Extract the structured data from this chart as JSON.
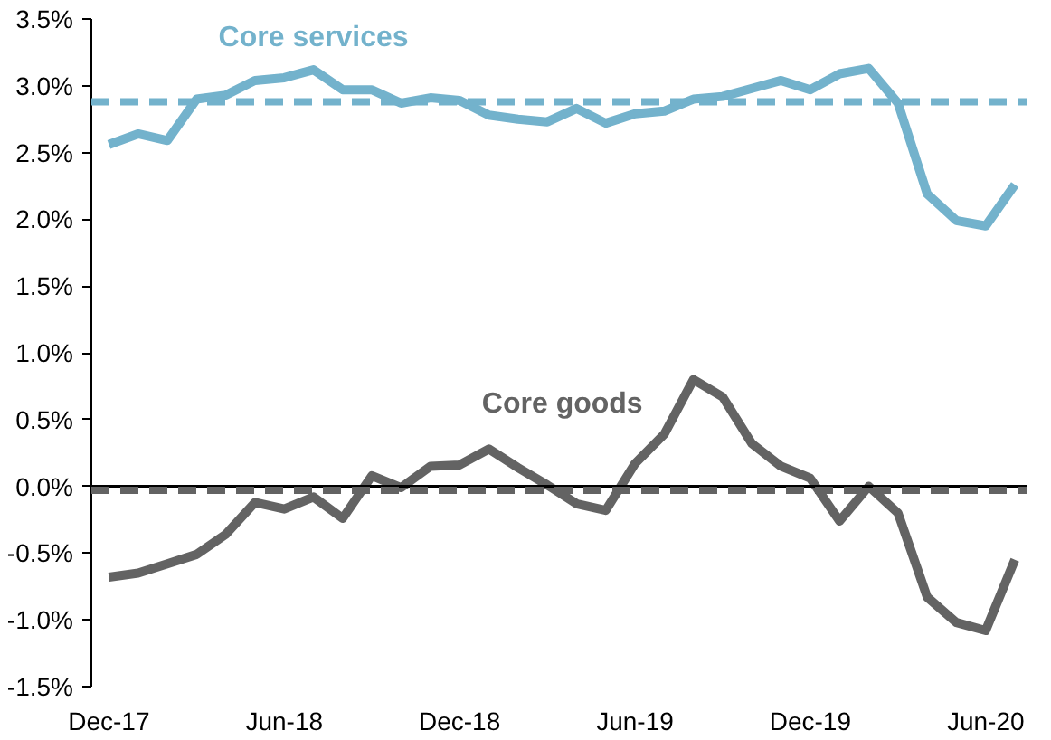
{
  "chart_data": {
    "type": "line",
    "categories": [
      "Dec-17",
      null,
      null,
      null,
      null,
      null,
      "Jun-18",
      null,
      null,
      null,
      null,
      null,
      "Dec-18",
      null,
      null,
      null,
      null,
      null,
      "Jun-19",
      null,
      null,
      null,
      null,
      null,
      "Dec-19",
      null,
      null,
      null,
      null,
      null,
      "Jun-20",
      null
    ],
    "series": [
      {
        "name": "Core services",
        "color": "#73b2cc",
        "values": [
          2.56,
          2.64,
          2.59,
          2.9,
          2.93,
          3.04,
          3.06,
          3.12,
          2.97,
          2.97,
          2.87,
          2.91,
          2.89,
          2.78,
          2.75,
          2.73,
          2.83,
          2.72,
          2.79,
          2.81,
          2.9,
          2.92,
          2.98,
          3.04,
          2.97,
          3.09,
          3.13,
          2.87,
          2.19,
          1.99,
          1.95,
          2.26
        ]
      },
      {
        "name": "Core goods",
        "color": "#636363",
        "values": [
          -0.68,
          -0.65,
          -0.58,
          -0.51,
          -0.36,
          -0.12,
          -0.17,
          -0.08,
          -0.24,
          0.08,
          -0.01,
          0.15,
          0.16,
          0.28,
          0.14,
          0.01,
          -0.13,
          -0.18,
          0.17,
          0.39,
          0.8,
          0.67,
          0.32,
          0.15,
          0.06,
          -0.26,
          0.0,
          -0.2,
          -0.83,
          -1.02,
          -1.08,
          -0.55
        ]
      }
    ],
    "ylim": [
      -1.5,
      3.5
    ],
    "yticks": [
      {
        "value": -1.5,
        "label": "-1.5%"
      },
      {
        "value": -1.0,
        "label": "-1.0%"
      },
      {
        "value": -0.5,
        "label": "-0.5%"
      },
      {
        "value": 0.0,
        "label": "0.0%"
      },
      {
        "value": 0.5,
        "label": "0.5%"
      },
      {
        "value": 1.0,
        "label": "1.0%"
      },
      {
        "value": 1.5,
        "label": "1.5%"
      },
      {
        "value": 2.0,
        "label": "2.0%"
      },
      {
        "value": 2.5,
        "label": "2.5%"
      },
      {
        "value": 3.0,
        "label": "3.0%"
      },
      {
        "value": 3.5,
        "label": "3.5%"
      }
    ],
    "ref_lines": [
      {
        "axis": "y",
        "value": 0,
        "color": "#000000",
        "line_style": "solid"
      },
      {
        "axis": "y",
        "value": 2.88,
        "color": "#73b2cc",
        "line_style": "dashed"
      },
      {
        "axis": "y",
        "value": -0.03,
        "color": "#636363",
        "line_style": "dashed"
      }
    ],
    "grid": false,
    "marker": "none",
    "line_style": "solid"
  }
}
